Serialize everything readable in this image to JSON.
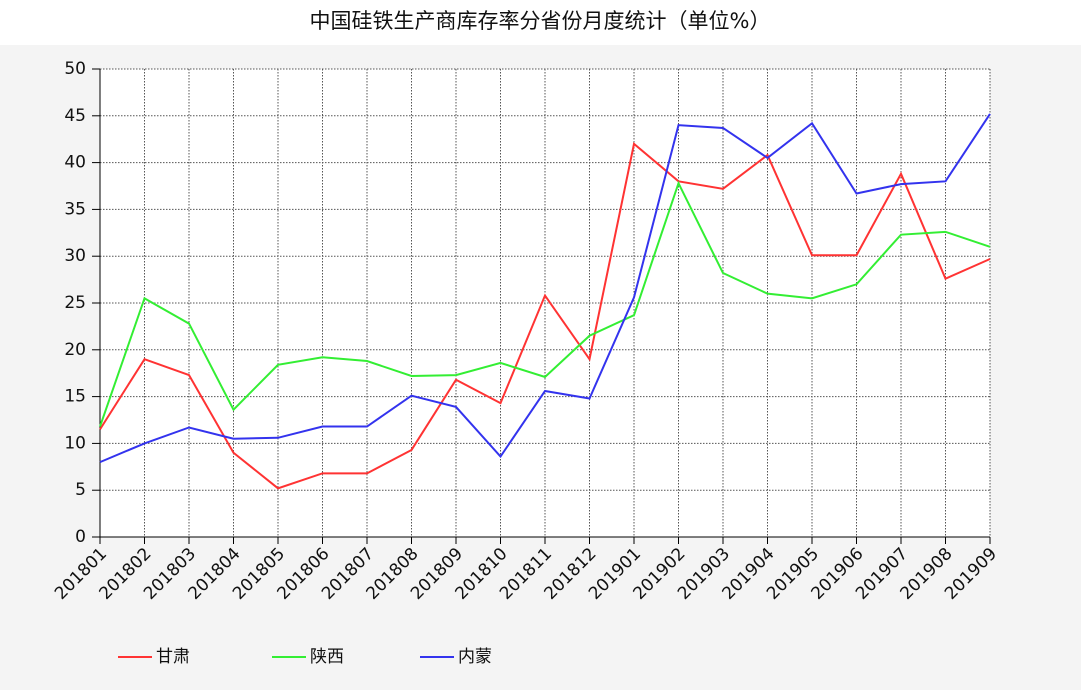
{
  "chart_data": {
    "type": "line",
    "title": "中国硅铁生产商库存率分省份月度统计（单位%）",
    "categories": [
      "201801",
      "201802",
      "201803",
      "201804",
      "201805",
      "201806",
      "201807",
      "201808",
      "201809",
      "201810",
      "201811",
      "201812",
      "201901",
      "201902",
      "201903",
      "201904",
      "201905",
      "201906",
      "201907",
      "201908",
      "201909"
    ],
    "series": [
      {
        "name": "甘肃",
        "color": "#ff3333",
        "values": [
          11.5,
          19,
          17.3,
          9,
          5.2,
          6.8,
          6.8,
          9.3,
          16.8,
          14.3,
          25.8,
          19,
          42,
          38,
          37.2,
          40.8,
          30.1,
          30.1,
          38.8,
          27.6,
          29.7
        ]
      },
      {
        "name": "陕西",
        "color": "#33ee33",
        "values": [
          11.8,
          25.5,
          22.8,
          13.6,
          18.4,
          19.2,
          18.8,
          17.2,
          17.3,
          18.6,
          17.1,
          21.5,
          23.7,
          37.8,
          28.2,
          26,
          25.5,
          27,
          32.3,
          32.6,
          31
        ]
      },
      {
        "name": "内蒙",
        "color": "#3333ee",
        "values": [
          8,
          10,
          11.7,
          10.5,
          10.6,
          11.8,
          11.8,
          15.1,
          13.9,
          8.6,
          15.6,
          14.8,
          25.6,
          44,
          43.7,
          40.5,
          44.2,
          36.7,
          37.7,
          38,
          45.2
        ]
      }
    ],
    "ylim": [
      0,
      50
    ],
    "yticks": [
      0,
      5,
      10,
      15,
      20,
      25,
      30,
      35,
      40,
      45,
      50
    ],
    "grid": true
  }
}
